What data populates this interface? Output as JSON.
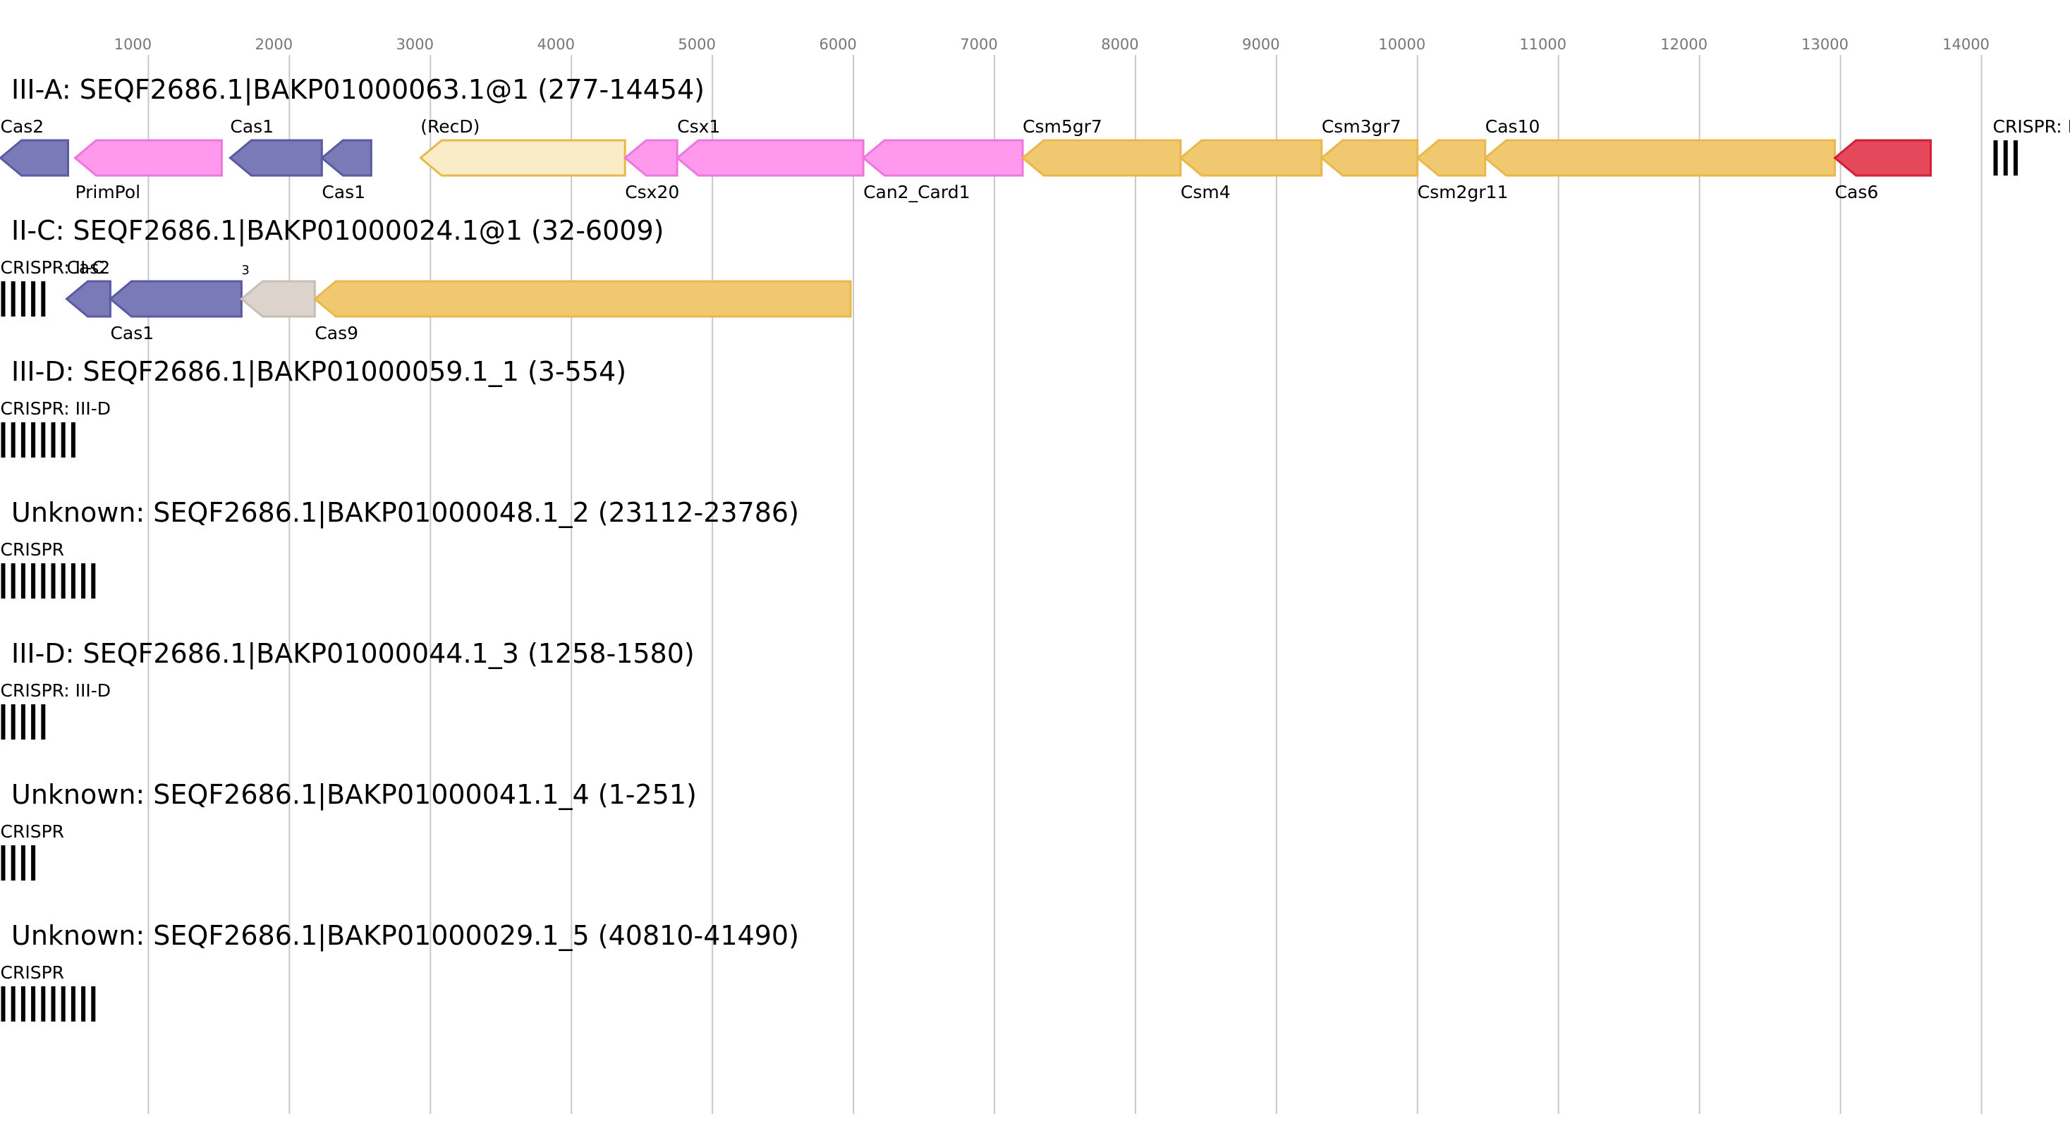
{
  "colors": {
    "blue": "#7a7ab8",
    "blue_stroke": "#5a5aa0",
    "pink": "#ff99ee",
    "pink_stroke": "#ee77dd",
    "gold": "#f0c870",
    "gold_stroke": "#e8b84a",
    "cream": "#fbecc8",
    "cream_stroke": "#e8b84a",
    "red": "#e4485a",
    "red_stroke": "#d0203a",
    "grey": "#dcd4cc",
    "grey_stroke": "#c8bfb4",
    "crispr": "#000000",
    "grid": "#c8c8c8"
  },
  "axis": {
    "ticks": [
      1000,
      2000,
      3000,
      4000,
      5000,
      6000,
      7000,
      8000,
      9000,
      10000,
      11000,
      12000,
      13000,
      14000
    ]
  },
  "tracks": [
    {
      "title": "III-A: SEQF2686.1|BAKP01000063.1@1 (277-14454)",
      "genes": [
        {
          "name": "Cas2",
          "start": -50,
          "end": 430,
          "color": "blue",
          "label_pos": "above"
        },
        {
          "name": "PrimPol",
          "start": 480,
          "end": 1520,
          "color": "pink",
          "label_pos": "below"
        },
        {
          "name": "Cas1",
          "start": 1580,
          "end": 2230,
          "color": "blue",
          "label_pos": "above"
        },
        {
          "name": "Cas1",
          "start": 2230,
          "end": 2580,
          "color": "blue",
          "label_pos": "below"
        },
        {
          "name": "(RecD)",
          "start": 2930,
          "end": 4380,
          "color": "cream",
          "label_pos": "above"
        },
        {
          "name": "Csx20",
          "start": 4380,
          "end": 4750,
          "color": "pink",
          "label_pos": "below"
        },
        {
          "name": "Csx1",
          "start": 4750,
          "end": 6070,
          "color": "pink",
          "label_pos": "above"
        },
        {
          "name": "Can2_Card1",
          "start": 6070,
          "end": 7200,
          "color": "pink",
          "label_pos": "below"
        },
        {
          "name": "Csm5gr7",
          "start": 7200,
          "end": 8320,
          "color": "gold",
          "label_pos": "above"
        },
        {
          "name": "Csm4",
          "start": 8320,
          "end": 9320,
          "color": "gold",
          "label_pos": "below"
        },
        {
          "name": "Csm3gr7",
          "start": 9320,
          "end": 10000,
          "color": "gold",
          "label_pos": "above"
        },
        {
          "name": "Csm2gr11",
          "start": 10000,
          "end": 10480,
          "color": "gold",
          "label_pos": "below"
        },
        {
          "name": "Cas10",
          "start": 10480,
          "end": 12960,
          "color": "gold",
          "label_pos": "above"
        },
        {
          "name": "Cas6",
          "start": 12960,
          "end": 13640,
          "color": "red",
          "label_pos": "below"
        }
      ],
      "crisprs": [
        {
          "label": "CRISPR: III",
          "start": 14080,
          "count": 3
        }
      ]
    },
    {
      "title": "II-C: SEQF2686.1|BAKP01000024.1@1 (32-6009)",
      "genes": [
        {
          "name": "Cas2",
          "start": 420,
          "end": 730,
          "color": "blue",
          "label_pos": "above"
        },
        {
          "name": "Cas1",
          "start": 730,
          "end": 1660,
          "color": "blue",
          "label_pos": "below"
        },
        {
          "name": "3",
          "start": 1660,
          "end": 2180,
          "color": "grey",
          "label_pos": "small"
        },
        {
          "name": "Cas9",
          "start": 2180,
          "end": 5980,
          "color": "gold",
          "label_pos": "below"
        }
      ],
      "crisprs": [
        {
          "label": "CRISPR: II-C",
          "start": -50,
          "count": 5
        }
      ]
    },
    {
      "title": "III-D: SEQF2686.1|BAKP01000059.1_1 (3-554)",
      "genes": [],
      "crisprs": [
        {
          "label": "CRISPR: III-D",
          "start": -50,
          "count": 8
        }
      ]
    },
    {
      "title": "Unknown: SEQF2686.1|BAKP01000048.1_2 (23112-23786)",
      "genes": [],
      "crisprs": [
        {
          "label": "CRISPR",
          "start": -50,
          "count": 10
        }
      ]
    },
    {
      "title": "III-D: SEQF2686.1|BAKP01000044.1_3 (1258-1580)",
      "genes": [],
      "crisprs": [
        {
          "label": "CRISPR: III-D",
          "start": -50,
          "count": 5
        }
      ]
    },
    {
      "title": "Unknown: SEQF2686.1|BAKP01000041.1_4 (1-251)",
      "genes": [],
      "crisprs": [
        {
          "label": "CRISPR",
          "start": -50,
          "count": 4
        }
      ]
    },
    {
      "title": "Unknown: SEQF2686.1|BAKP01000029.1_5 (40810-41490)",
      "genes": [],
      "crisprs": [
        {
          "label": "CRISPR",
          "start": -50,
          "count": 10
        }
      ]
    }
  ]
}
